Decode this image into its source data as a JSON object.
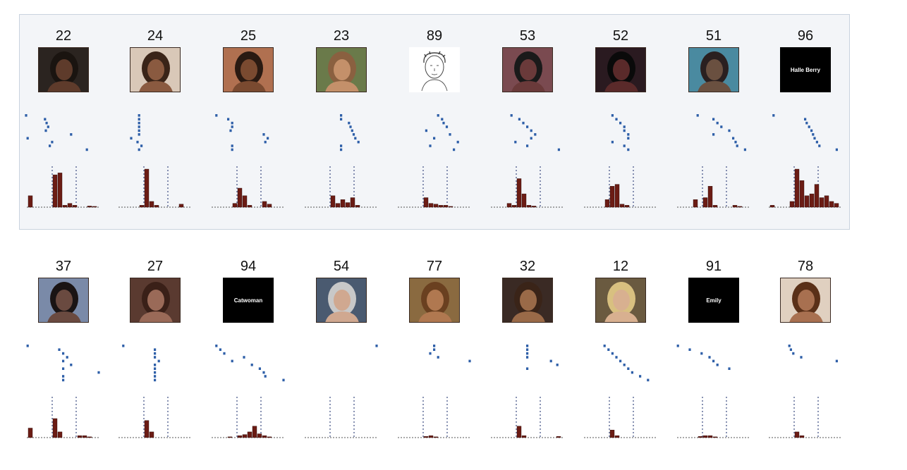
{
  "rows": [
    {
      "units": [
        {
          "number": "22",
          "stimulus": {
            "kind": "photo",
            "text": "",
            "skin": "#5e3b2b",
            "bg": "#2b2420",
            "hair": "#1a1410"
          },
          "spikes": [
            [
              0,
              0.03
            ],
            [
              1,
              0.27
            ],
            [
              2,
              0.29
            ],
            [
              3,
              0.31
            ],
            [
              4,
              0.28
            ],
            [
              5,
              0.6
            ],
            [
              6,
              0.05
            ],
            [
              7,
              0.36
            ],
            [
              8,
              0.33
            ],
            [
              9,
              0.8
            ]
          ],
          "hist": [
            0.3,
            0,
            0,
            0,
            0,
            0.85,
            0.9,
            0.05,
            0.1,
            0.05,
            0,
            0,
            0.03,
            0.02
          ]
        },
        {
          "number": "24",
          "stimulus": {
            "kind": "photo",
            "text": "",
            "skin": "#8a5a40",
            "bg": "#d9c8b8",
            "hair": "#3a2418"
          },
          "spikes": [
            [
              0,
              0.3
            ],
            [
              1,
              0.3
            ],
            [
              2,
              0.3
            ],
            [
              3,
              0.3
            ],
            [
              4,
              0.3
            ],
            [
              5,
              0.3
            ],
            [
              6,
              0.2
            ],
            [
              7,
              0.28
            ],
            [
              8,
              0.33
            ],
            [
              9,
              0.3
            ]
          ],
          "hist": [
            0,
            0,
            0,
            0,
            0.05,
            1,
            0.15,
            0.05,
            0,
            0,
            0,
            0,
            0.08,
            0
          ]
        },
        {
          "number": "25",
          "stimulus": {
            "kind": "photo",
            "text": "",
            "skin": "#7a4a30",
            "bg": "#b07050",
            "hair": "#2a1a12"
          },
          "spikes": [
            [
              0,
              0.1
            ],
            [
              1,
              0.25
            ],
            [
              2,
              0.3
            ],
            [
              3,
              0.3
            ],
            [
              4,
              0.28
            ],
            [
              5,
              0.7
            ],
            [
              6,
              0.75
            ],
            [
              7,
              0.72
            ],
            [
              8,
              0.3
            ],
            [
              9,
              0.3
            ]
          ],
          "hist": [
            0,
            0,
            0,
            0,
            0.1,
            0.5,
            0.3,
            0.05,
            0,
            0,
            0.15,
            0.08,
            0,
            0
          ]
        },
        {
          "number": "23",
          "stimulus": {
            "kind": "photo",
            "text": "",
            "skin": "#c4906a",
            "bg": "#6a7a4a",
            "hair": "#8a6040"
          },
          "spikes": [
            [
              0,
              0.5
            ],
            [
              1,
              0.5
            ],
            [
              2,
              0.6
            ],
            [
              3,
              0.62
            ],
            [
              4,
              0.64
            ],
            [
              5,
              0.66
            ],
            [
              6,
              0.68
            ],
            [
              7,
              0.72
            ],
            [
              8,
              0.5
            ],
            [
              9,
              0.5
            ]
          ],
          "hist": [
            0,
            0,
            0,
            0,
            0,
            0.3,
            0.1,
            0.2,
            0.12,
            0.25,
            0.05,
            0,
            0,
            0
          ]
        },
        {
          "number": "89",
          "stimulus": {
            "kind": "sketch",
            "text": ""
          },
          "spikes": [
            [
              0,
              0.55
            ],
            [
              1,
              0.6
            ],
            [
              2,
              0.62
            ],
            [
              3,
              0.66
            ],
            [
              4,
              0.4
            ],
            [
              5,
              0.7
            ],
            [
              6,
              0.5
            ],
            [
              7,
              0.8
            ],
            [
              8,
              0.45
            ],
            [
              9,
              0.75
            ]
          ],
          "hist": [
            0,
            0,
            0,
            0,
            0,
            0.25,
            0.1,
            0.08,
            0.05,
            0.05,
            0.02,
            0,
            0,
            0
          ]
        },
        {
          "number": "53",
          "stimulus": {
            "kind": "photo",
            "text": "",
            "skin": "#6a3a3a",
            "bg": "#7a4a50",
            "hair": "#1a1a1a"
          },
          "spikes": [
            [
              0,
              0.3
            ],
            [
              1,
              0.4
            ],
            [
              2,
              0.45
            ],
            [
              3,
              0.5
            ],
            [
              4,
              0.55
            ],
            [
              5,
              0.6
            ],
            [
              6,
              0.55
            ],
            [
              7,
              0.35
            ],
            [
              8,
              0.5
            ],
            [
              9,
              0.9
            ]
          ],
          "hist": [
            0,
            0,
            0,
            0.1,
            0.05,
            0.75,
            0.35,
            0.05,
            0.03,
            0,
            0,
            0,
            0,
            0
          ]
        },
        {
          "number": "52",
          "stimulus": {
            "kind": "photo",
            "text": "",
            "skin": "#5a2a2a",
            "bg": "#2a1a20",
            "hair": "#0a0a0a"
          },
          "spikes": [
            [
              0,
              0.4
            ],
            [
              1,
              0.45
            ],
            [
              2,
              0.5
            ],
            [
              3,
              0.55
            ],
            [
              4,
              0.55
            ],
            [
              5,
              0.6
            ],
            [
              6,
              0.6
            ],
            [
              7,
              0.4
            ],
            [
              8,
              0.55
            ],
            [
              9,
              0.6
            ]
          ],
          "hist": [
            0,
            0,
            0,
            0,
            0.2,
            0.55,
            0.6,
            0.08,
            0.05,
            0,
            0,
            0,
            0,
            0
          ]
        },
        {
          "number": "51",
          "stimulus": {
            "kind": "photo",
            "text": "",
            "skin": "#6a5040",
            "bg": "#4a8aa0",
            "hair": "#2a2020"
          },
          "spikes": [
            [
              0,
              0.3
            ],
            [
              1,
              0.5
            ],
            [
              2,
              0.55
            ],
            [
              3,
              0.6
            ],
            [
              4,
              0.7
            ],
            [
              5,
              0.5
            ],
            [
              6,
              0.75
            ],
            [
              7,
              0.78
            ],
            [
              8,
              0.8
            ],
            [
              9,
              0.9
            ]
          ],
          "hist": [
            0,
            0,
            0,
            0.2,
            0,
            0.25,
            0.55,
            0.05,
            0,
            0,
            0,
            0.05,
            0.02,
            0
          ]
        },
        {
          "number": "96",
          "stimulus": {
            "kind": "text",
            "text": "Halle Berry"
          },
          "spikes": [
            [
              0,
              0.1
            ],
            [
              1,
              0.5
            ],
            [
              2,
              0.52
            ],
            [
              3,
              0.55
            ],
            [
              4,
              0.58
            ],
            [
              5,
              0.6
            ],
            [
              6,
              0.62
            ],
            [
              7,
              0.65
            ],
            [
              8,
              0.68
            ],
            [
              9,
              0.9
            ]
          ],
          "hist": [
            0.05,
            0,
            0,
            0,
            0.15,
            1,
            0.7,
            0.3,
            0.35,
            0.6,
            0.25,
            0.3,
            0.15,
            0.1
          ]
        }
      ]
    },
    {
      "units": [
        {
          "number": "37",
          "stimulus": {
            "kind": "photo",
            "text": "",
            "skin": "#6a4a40",
            "bg": "#7a8aa8",
            "hair": "#1a1414"
          },
          "spikes": [
            [
              0,
              0.05
            ],
            [
              1,
              0.45
            ],
            [
              2,
              0.5
            ],
            [
              3,
              0.55
            ],
            [
              4,
              0.5
            ],
            [
              5,
              0.6
            ],
            [
              6,
              0.5
            ],
            [
              7,
              0.95
            ],
            [
              8,
              0.5
            ],
            [
              9,
              0.5
            ]
          ],
          "hist": [
            0.25,
            0,
            0,
            0,
            0,
            0.5,
            0.15,
            0,
            0,
            0,
            0.05,
            0.05,
            0.02,
            0
          ]
        },
        {
          "number": "27",
          "stimulus": {
            "kind": "photo",
            "text": "",
            "skin": "#9a6a58",
            "bg": "#5a3a30",
            "hair": "#3a2018"
          },
          "spikes": [
            [
              0,
              0.1
            ],
            [
              1,
              0.5
            ],
            [
              2,
              0.5
            ],
            [
              3,
              0.5
            ],
            [
              4,
              0.55
            ],
            [
              5,
              0.5
            ],
            [
              6,
              0.5
            ],
            [
              7,
              0.5
            ],
            [
              8,
              0.5
            ],
            [
              9,
              0.5
            ]
          ],
          "hist": [
            0,
            0,
            0,
            0,
            0,
            0.45,
            0.15,
            0,
            0,
            0,
            0,
            0,
            0,
            0
          ]
        },
        {
          "number": "94",
          "stimulus": {
            "kind": "text",
            "text": "Catwoman"
          },
          "spikes": [
            [
              0,
              0.1
            ],
            [
              1,
              0.15
            ],
            [
              2,
              0.2
            ],
            [
              3,
              0.45
            ],
            [
              4,
              0.3
            ],
            [
              5,
              0.55
            ],
            [
              6,
              0.65
            ],
            [
              7,
              0.7
            ],
            [
              8,
              0.72
            ],
            [
              9,
              0.95
            ]
          ],
          "hist": [
            0,
            0,
            0,
            0.02,
            0,
            0.05,
            0.08,
            0.15,
            0.3,
            0.1,
            0.05,
            0.02,
            0,
            0
          ]
        },
        {
          "number": "54",
          "stimulus": {
            "kind": "photo",
            "text": "",
            "skin": "#d0a890",
            "bg": "#4a5a70",
            "hair": "#c8c8c8"
          },
          "spikes": [
            [
              0,
              0.95
            ]
          ],
          "hist": [
            0,
            0,
            0,
            0,
            0,
            0,
            0,
            0,
            0,
            0,
            0,
            0,
            0,
            0
          ]
        },
        {
          "number": "77",
          "stimulus": {
            "kind": "photo",
            "text": "",
            "skin": "#b07850",
            "bg": "#8a6a40",
            "hair": "#6a4020"
          },
          "spikes": [
            [
              0,
              0.5
            ],
            [
              1,
              0.5
            ],
            [
              2,
              0.45
            ],
            [
              3,
              0.55
            ],
            [
              4,
              0.95
            ]
          ],
          "hist": [
            0,
            0,
            0,
            0,
            0,
            0.03,
            0.05,
            0.02,
            0,
            0,
            0,
            0,
            0,
            0
          ]
        },
        {
          "number": "32",
          "stimulus": {
            "kind": "photo",
            "text": "",
            "skin": "#9a6a48",
            "bg": "#3a2a24",
            "hair": "#3a2418"
          },
          "spikes": [
            [
              0,
              0.5
            ],
            [
              1,
              0.5
            ],
            [
              2,
              0.5
            ],
            [
              3,
              0.5
            ],
            [
              4,
              0.8
            ],
            [
              5,
              0.88
            ],
            [
              6,
              0.5
            ]
          ],
          "hist": [
            0,
            0,
            0,
            0,
            0,
            0.3,
            0.05,
            0,
            0,
            0,
            0,
            0,
            0,
            0.03
          ]
        },
        {
          "number": "12",
          "stimulus": {
            "kind": "photo",
            "text": "",
            "skin": "#d8b090",
            "bg": "#6a5a40",
            "hair": "#d8c080"
          },
          "spikes": [
            [
              0,
              0.3
            ],
            [
              1,
              0.35
            ],
            [
              2,
              0.4
            ],
            [
              3,
              0.45
            ],
            [
              4,
              0.5
            ],
            [
              5,
              0.55
            ],
            [
              6,
              0.6
            ],
            [
              7,
              0.65
            ],
            [
              8,
              0.75
            ],
            [
              9,
              0.85
            ]
          ],
          "hist": [
            0,
            0,
            0,
            0,
            0,
            0.2,
            0.05,
            0,
            0,
            0,
            0,
            0,
            0,
            0
          ]
        },
        {
          "number": "91",
          "stimulus": {
            "kind": "text",
            "text": "Emily"
          },
          "spikes": [
            [
              0,
              0.05
            ],
            [
              1,
              0.2
            ],
            [
              2,
              0.35
            ],
            [
              3,
              0.45
            ],
            [
              4,
              0.5
            ],
            [
              5,
              0.55
            ],
            [
              6,
              0.7
            ]
          ],
          "hist": [
            0,
            0,
            0,
            0,
            0.03,
            0.05,
            0.05,
            0.02,
            0,
            0,
            0,
            0,
            0,
            0
          ]
        },
        {
          "number": "78",
          "stimulus": {
            "kind": "photo",
            "text": "",
            "skin": "#a87050",
            "bg": "#e0d0c0",
            "hair": "#5a3018"
          },
          "spikes": [
            [
              0,
              0.3
            ],
            [
              1,
              0.32
            ],
            [
              2,
              0.35
            ],
            [
              3,
              0.45
            ],
            [
              4,
              0.9
            ]
          ],
          "hist": [
            0,
            0,
            0,
            0,
            0,
            0.15,
            0.05,
            0,
            0,
            0,
            0,
            0,
            0,
            0
          ]
        }
      ]
    }
  ],
  "colors": {
    "spike": "#2e5fa8",
    "bar": "#6b1c14",
    "baseline": "#555555",
    "marker": "#3a4a80"
  }
}
